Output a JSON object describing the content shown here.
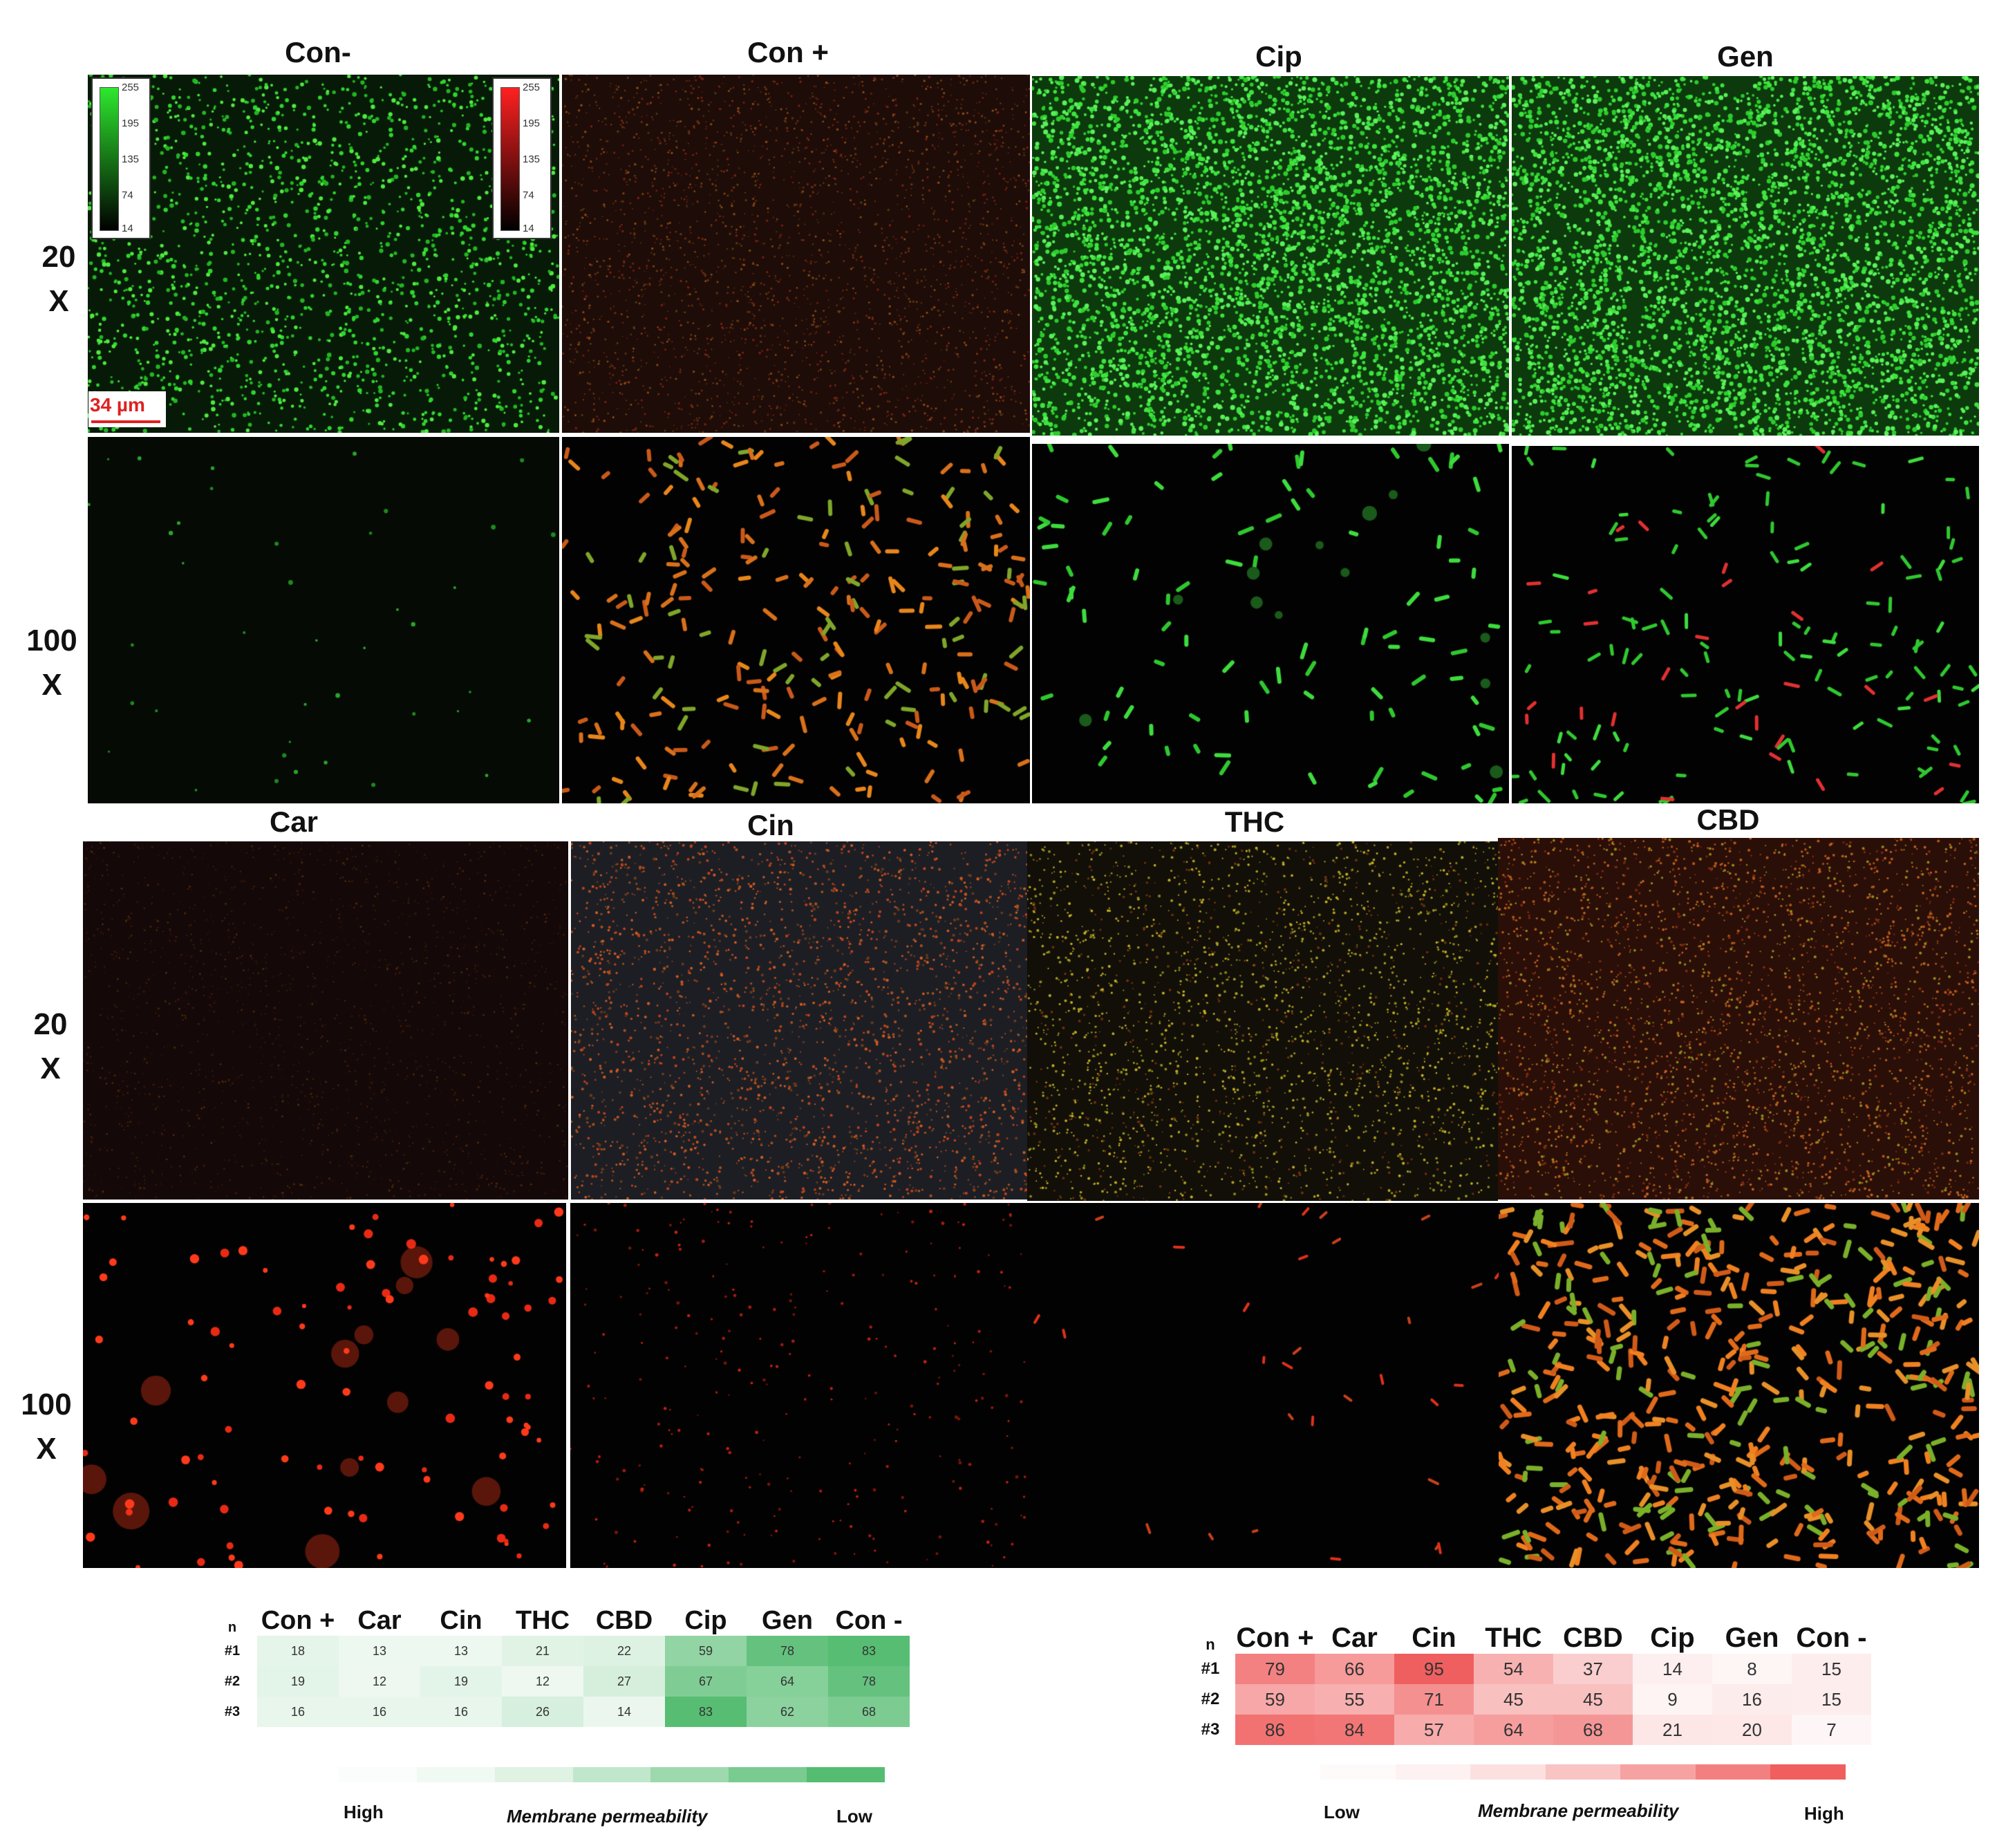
{
  "top": {
    "columns": [
      "Con-",
      "Con +",
      "Cip",
      "Gen"
    ],
    "rows": [
      [
        "20",
        "X"
      ],
      [
        "100",
        "X"
      ]
    ],
    "colorbar_ticks": [
      "255",
      "195",
      "135",
      "74",
      "14"
    ],
    "scale_label": "34 µm"
  },
  "bottom": {
    "columns": [
      "Car",
      "Cin",
      "THC",
      "CBD"
    ],
    "rows": [
      [
        "20",
        "X"
      ],
      [
        "100",
        "X"
      ]
    ]
  },
  "panels": [
    {
      "id": "con-neg-20x",
      "style": "green-dense"
    },
    {
      "id": "con-pos-20x",
      "style": "red-fine"
    },
    {
      "id": "cip-20x",
      "style": "green-very-dense"
    },
    {
      "id": "gen-20x",
      "style": "green-very-dense"
    },
    {
      "id": "con-neg-100x",
      "style": "green-sparse-dim"
    },
    {
      "id": "con-pos-100x",
      "style": "orange-rods"
    },
    {
      "id": "cip-100x",
      "style": "green-rods"
    },
    {
      "id": "gen-100x",
      "style": "green-rods-red"
    },
    {
      "id": "car-20x",
      "style": "dark-red-fine"
    },
    {
      "id": "cin-20x",
      "style": "red-fine-blue"
    },
    {
      "id": "thc-20x",
      "style": "yellow-fine"
    },
    {
      "id": "cbd-20x",
      "style": "red-yellow-fine"
    },
    {
      "id": "car-100x",
      "style": "red-clusters"
    },
    {
      "id": "cin-100x",
      "style": "red-sparse"
    },
    {
      "id": "thc-100x",
      "style": "red-very-sparse"
    },
    {
      "id": "cbd-100x",
      "style": "orange-rods-dense"
    }
  ],
  "green_table": {
    "corner": "n",
    "headers": [
      "Con +",
      "Car",
      "Cin",
      "THC",
      "CBD",
      "Cip",
      "Gen",
      "Con -"
    ],
    "row_labels": [
      "#1",
      "#2",
      "#3"
    ],
    "values": [
      [
        18,
        13,
        13,
        21,
        22,
        59,
        78,
        83
      ],
      [
        19,
        12,
        19,
        12,
        27,
        67,
        64,
        78
      ],
      [
        16,
        16,
        16,
        26,
        14,
        83,
        62,
        68
      ]
    ],
    "legend": {
      "left": "High",
      "middle": "Membrane permeability",
      "right": "Low"
    },
    "color": "#4cb96a"
  },
  "red_table": {
    "corner": "n",
    "headers": [
      "Con +",
      "Car",
      "Cin",
      "THC",
      "CBD",
      "Cip",
      "Gen",
      "Con -"
    ],
    "row_labels": [
      "#1",
      "#2",
      "#3"
    ],
    "values": [
      [
        79,
        66,
        95,
        54,
        37,
        14,
        8,
        15
      ],
      [
        59,
        55,
        71,
        45,
        45,
        9,
        16,
        15
      ],
      [
        86,
        84,
        57,
        64,
        68,
        21,
        20,
        7
      ]
    ],
    "legend": {
      "left": "Low",
      "middle": "Membrane permeability",
      "right": "High"
    },
    "color": "#ef5555"
  }
}
